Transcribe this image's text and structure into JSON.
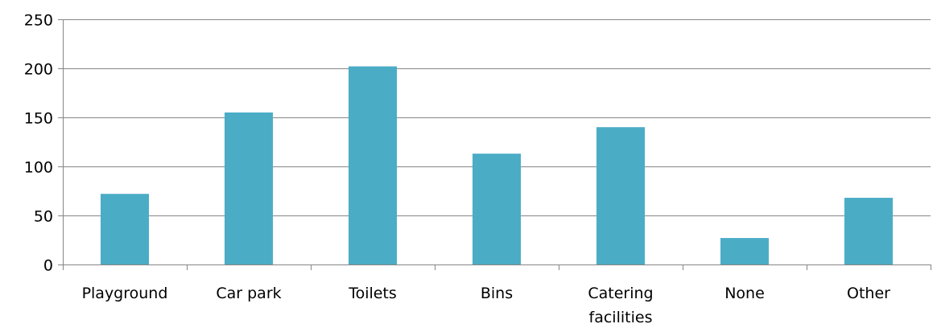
{
  "chart_data": {
    "type": "bar",
    "title": "",
    "xlabel": "",
    "ylabel": "",
    "categories": [
      "Playground",
      "Car park",
      "Toilets",
      "Bins",
      "Catering facilities",
      "None",
      "Other"
    ],
    "values": [
      72,
      155,
      202,
      113,
      140,
      27,
      68
    ],
    "ylim": [
      0,
      250
    ],
    "yticks": [
      0,
      50,
      100,
      150,
      200,
      250
    ],
    "grid": true,
    "legend": "none",
    "bar_color": "#4BACC6",
    "grid_color": "#868686",
    "axis_color": "#868686"
  }
}
